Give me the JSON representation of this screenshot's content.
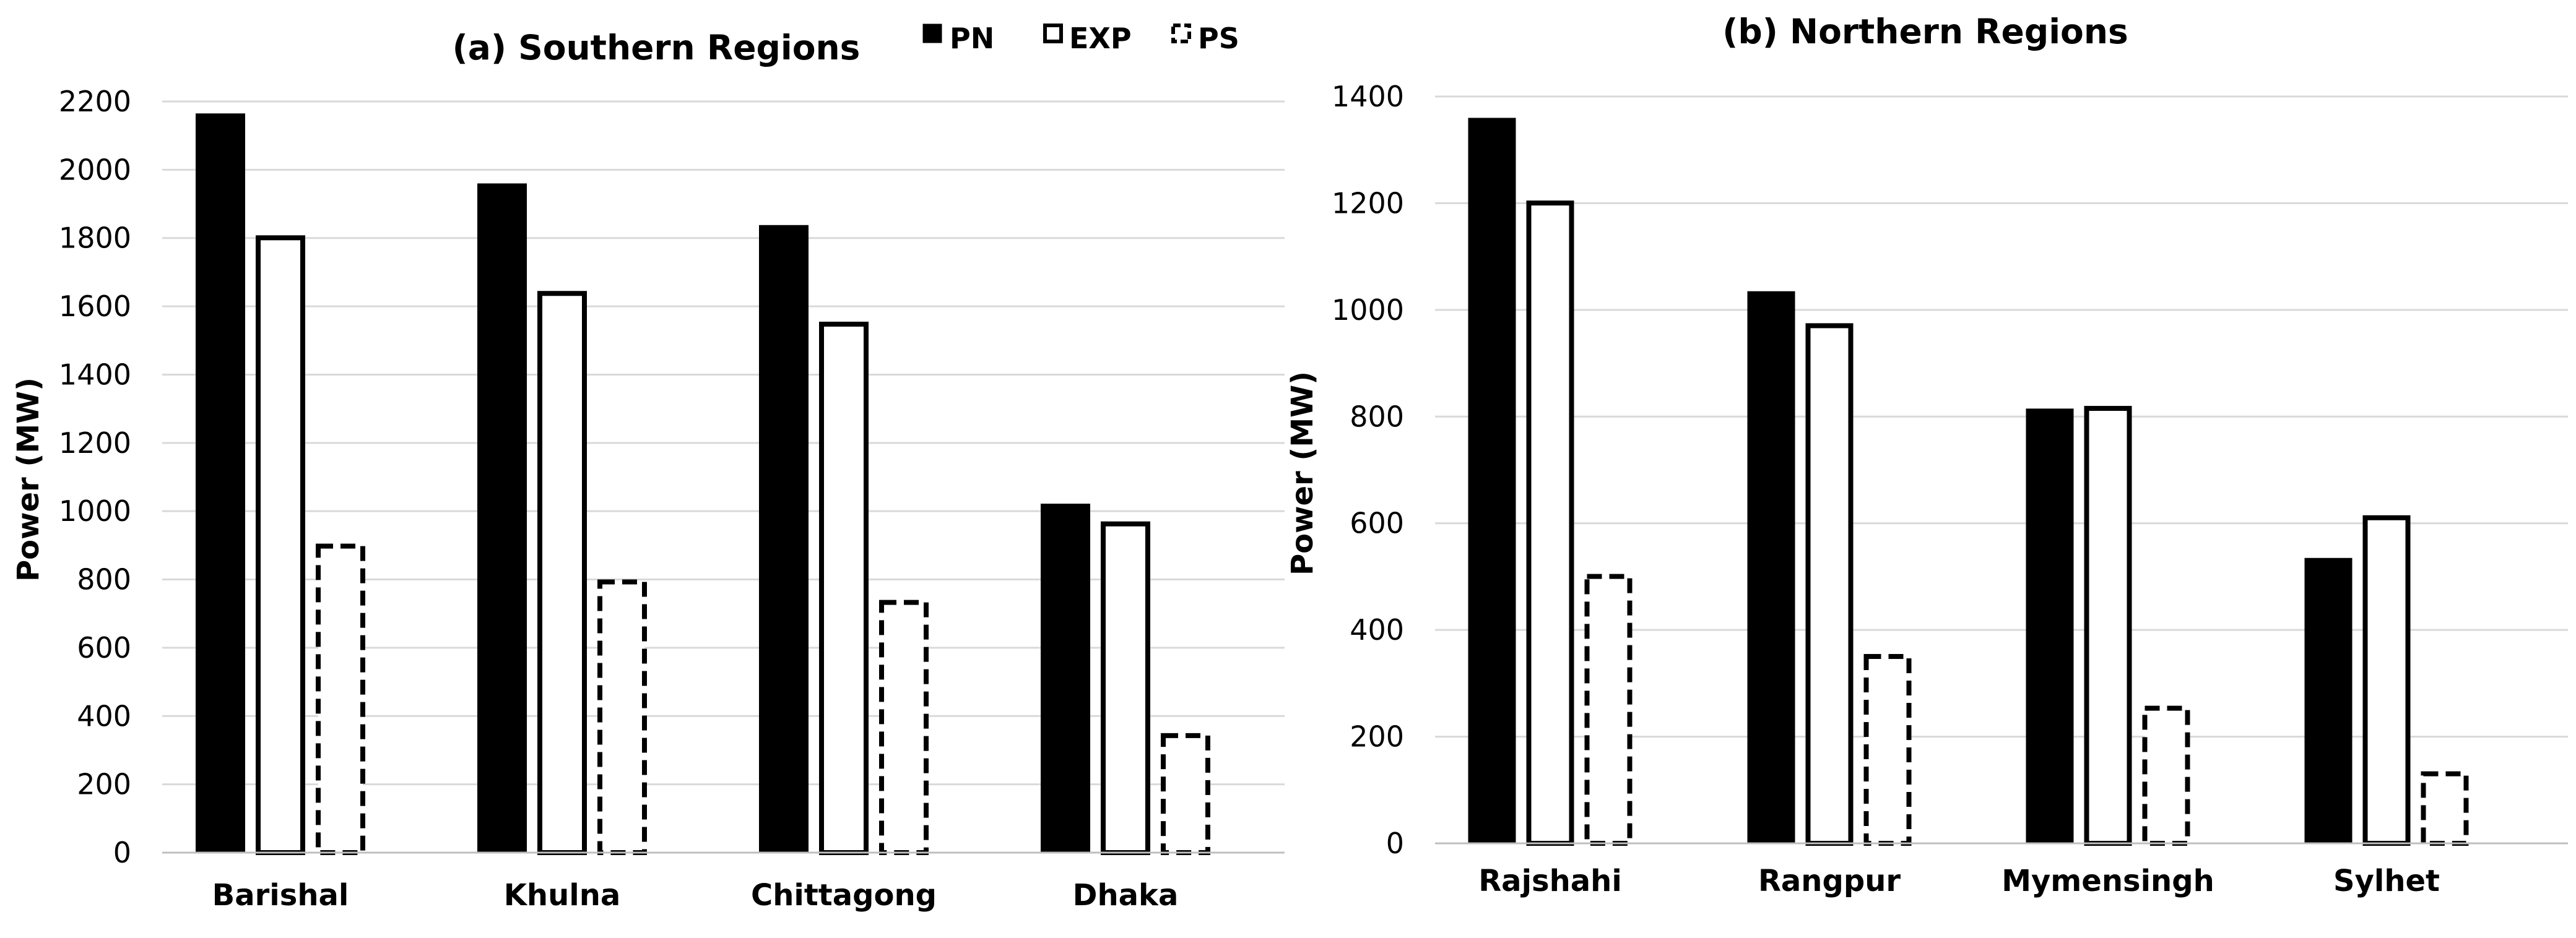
{
  "chart_data": [
    {
      "type": "bar",
      "title": "(a) Southern Regions",
      "xlabel": "",
      "ylabel": "Power (MW)",
      "categories": [
        "Barishal",
        "Khulna",
        "Chittagong",
        "Dhaka"
      ],
      "ylim": [
        0,
        2200
      ],
      "yticks": [
        0,
        200,
        400,
        600,
        800,
        1000,
        1200,
        1400,
        1600,
        1800,
        2000,
        2200
      ],
      "grid": true,
      "legend": {
        "placement": "top-right",
        "entries": [
          "PN",
          "EXP",
          "PS"
        ]
      },
      "series": [
        {
          "name": "PN",
          "style": "solid",
          "values": [
            2165,
            1960,
            1838,
            1022
          ]
        },
        {
          "name": "EXP",
          "style": "hollow",
          "values": [
            1808,
            1645,
            1555,
            970
          ]
        },
        {
          "name": "PS",
          "style": "dashed",
          "values": [
            905,
            800,
            740,
            350
          ]
        }
      ]
    },
    {
      "type": "bar",
      "title": "(b) Northern Regions",
      "xlabel": "",
      "ylabel": "Power (MW)",
      "categories": [
        "Rajshahi",
        "Rangpur",
        "Mymensingh",
        "Sylhet"
      ],
      "ylim": [
        0,
        1400
      ],
      "yticks": [
        0,
        200,
        400,
        600,
        800,
        1000,
        1200,
        1400
      ],
      "grid": true,
      "series": [
        {
          "name": "PN",
          "style": "solid",
          "values": [
            1360,
            1035,
            815,
            535
          ]
        },
        {
          "name": "EXP",
          "style": "hollow",
          "values": [
            1205,
            975,
            820,
            615
          ]
        },
        {
          "name": "PS",
          "style": "dashed",
          "values": [
            505,
            355,
            258,
            135
          ]
        }
      ]
    }
  ],
  "colors": {
    "bar_fill": "#000000",
    "hollow_fill": "#ffffff",
    "gridline": "#d9d9d9",
    "axis": "#bfbfbf",
    "text": "#000000"
  }
}
